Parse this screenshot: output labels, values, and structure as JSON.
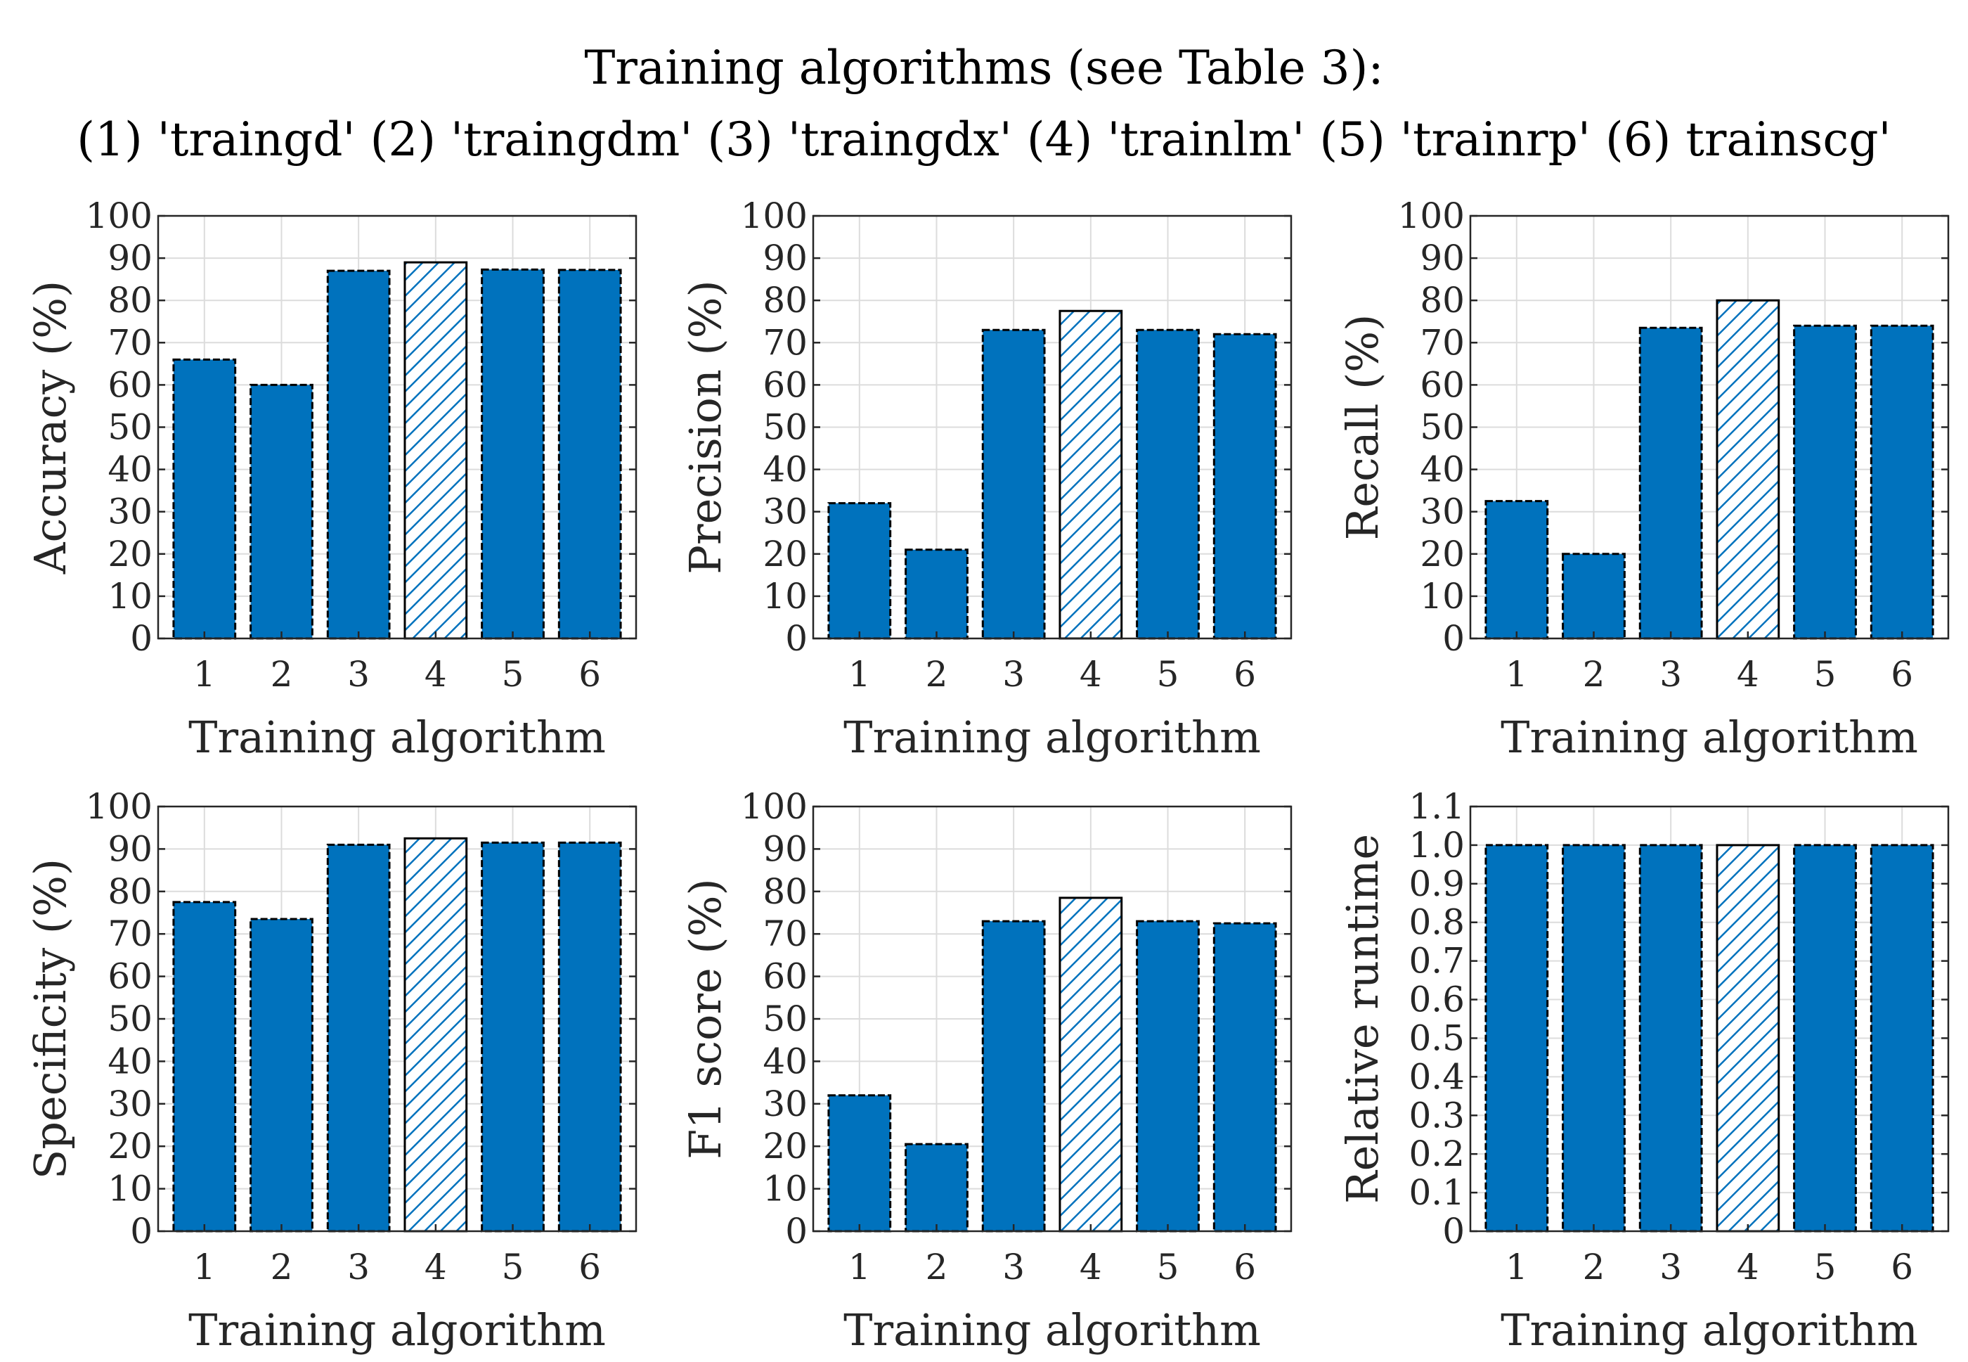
{
  "suptitle": {
    "line1": "Training algorithms (see Table 3):",
    "line2": "(1) 'traingd' (2) 'traingdm' (3) 'traingdx' (4) 'trainlm' (5) 'trainrp' (6) trainscg'"
  },
  "colors": {
    "bar": "#0072BD",
    "highlight_hatch": "#0072BD",
    "edge": "#000000",
    "grid": "#dcdcdc"
  },
  "chart_data": [
    {
      "type": "bar",
      "title": "",
      "xlabel": "Training algorithm",
      "ylabel": "Accuracy (%)",
      "categories": [
        "1",
        "2",
        "3",
        "4",
        "5",
        "6"
      ],
      "values": [
        66,
        60,
        87,
        89,
        87.3,
        87.2
      ],
      "highlight_index": 3,
      "ylim": [
        0,
        100
      ],
      "yticks": [
        "0",
        "10",
        "20",
        "30",
        "40",
        "50",
        "60",
        "70",
        "80",
        "90",
        "100"
      ],
      "grid": true
    },
    {
      "type": "bar",
      "title": "",
      "xlabel": "Training algorithm",
      "ylabel": "Precision (%)",
      "categories": [
        "1",
        "2",
        "3",
        "4",
        "5",
        "6"
      ],
      "values": [
        32,
        21,
        73,
        77.5,
        73,
        72
      ],
      "highlight_index": 3,
      "ylim": [
        0,
        100
      ],
      "yticks": [
        "0",
        "10",
        "20",
        "30",
        "40",
        "50",
        "60",
        "70",
        "80",
        "90",
        "100"
      ],
      "grid": true
    },
    {
      "type": "bar",
      "title": "",
      "xlabel": "Training algorithm",
      "ylabel": "Recall (%)",
      "categories": [
        "1",
        "2",
        "3",
        "4",
        "5",
        "6"
      ],
      "values": [
        32.5,
        20,
        73.5,
        80,
        74,
        74
      ],
      "highlight_index": 3,
      "ylim": [
        0,
        100
      ],
      "yticks": [
        "0",
        "10",
        "20",
        "30",
        "40",
        "50",
        "60",
        "70",
        "80",
        "90",
        "100"
      ],
      "grid": true
    },
    {
      "type": "bar",
      "title": "",
      "xlabel": "Training algorithm",
      "ylabel": "Specificity (%)",
      "categories": [
        "1",
        "2",
        "3",
        "4",
        "5",
        "6"
      ],
      "values": [
        77.5,
        73.5,
        91,
        92.5,
        91.5,
        91.5
      ],
      "highlight_index": 3,
      "ylim": [
        0,
        100
      ],
      "yticks": [
        "0",
        "10",
        "20",
        "30",
        "40",
        "50",
        "60",
        "70",
        "80",
        "90",
        "100"
      ],
      "grid": true
    },
    {
      "type": "bar",
      "title": "",
      "xlabel": "Training algorithm",
      "ylabel": "F1 score (%)",
      "categories": [
        "1",
        "2",
        "3",
        "4",
        "5",
        "6"
      ],
      "values": [
        32,
        20.5,
        73,
        78.5,
        73,
        72.5
      ],
      "highlight_index": 3,
      "ylim": [
        0,
        100
      ],
      "yticks": [
        "0",
        "10",
        "20",
        "30",
        "40",
        "50",
        "60",
        "70",
        "80",
        "90",
        "100"
      ],
      "grid": true
    },
    {
      "type": "bar",
      "title": "",
      "xlabel": "Training algorithm",
      "ylabel": "Relative runtime",
      "categories": [
        "1",
        "2",
        "3",
        "4",
        "5",
        "6"
      ],
      "values": [
        1.0,
        1.0,
        1.0,
        1.0,
        1.0,
        1.0
      ],
      "highlight_index": 3,
      "ylim": [
        0,
        1.1
      ],
      "yticks": [
        "0",
        "0.1",
        "0.2",
        "0.3",
        "0.4",
        "0.5",
        "0.6",
        "0.7",
        "0.8",
        "0.9",
        "1.0",
        "1.1"
      ],
      "grid": true
    }
  ]
}
